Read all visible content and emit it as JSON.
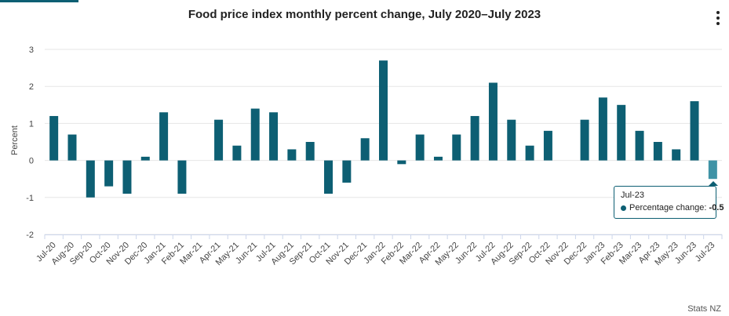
{
  "title": "Food price index monthly percent change, July 2020–July 2023",
  "menu_icon": "vertical-ellipsis-icon",
  "credits": "Stats NZ",
  "tooltip": {
    "category": "Jul-23",
    "series_label": "Percentage change:",
    "value": "-0.5"
  },
  "colors": {
    "bar": "#0d5f73",
    "bar_highlight": "#3f93a6",
    "grid": "#e6e6e6"
  },
  "chart_data": {
    "type": "bar",
    "title": "Food price index monthly percent change, July 2020–July 2023",
    "xlabel": "",
    "ylabel": "Percent",
    "ylim": [
      -2,
      3
    ],
    "yticks": [
      -2,
      -1,
      0,
      1,
      2,
      3
    ],
    "grid": true,
    "categories": [
      "Jul-20",
      "Aug-20",
      "Sep-20",
      "Oct-20",
      "Nov-20",
      "Dec-20",
      "Jan-21",
      "Feb-21",
      "Mar-21",
      "Apr-21",
      "May-21",
      "Jun-21",
      "Jul-21",
      "Aug-21",
      "Sep-21",
      "Oct-21",
      "Nov-21",
      "Dec-21",
      "Jan-22",
      "Feb-22",
      "Mar-22",
      "Apr-22",
      "May-22",
      "Jun-22",
      "Jul-22",
      "Aug-22",
      "Sep-22",
      "Oct-22",
      "Nov-22",
      "Dec-22",
      "Jan-23",
      "Feb-23",
      "Mar-23",
      "Apr-23",
      "May-23",
      "Jun-23",
      "Jul-23"
    ],
    "series": [
      {
        "name": "Percentage change",
        "values": [
          1.2,
          0.7,
          -1.0,
          -0.7,
          -0.9,
          0.1,
          1.3,
          -0.9,
          0.0,
          1.1,
          0.4,
          1.4,
          1.3,
          0.3,
          0.5,
          -0.9,
          -0.6,
          0.6,
          2.7,
          -0.1,
          0.7,
          0.1,
          0.7,
          1.2,
          2.1,
          1.1,
          0.4,
          0.8,
          0.0,
          1.1,
          1.7,
          1.5,
          0.8,
          0.5,
          0.3,
          1.6,
          -0.5
        ]
      }
    ],
    "highlighted_category": "Jul-23"
  }
}
